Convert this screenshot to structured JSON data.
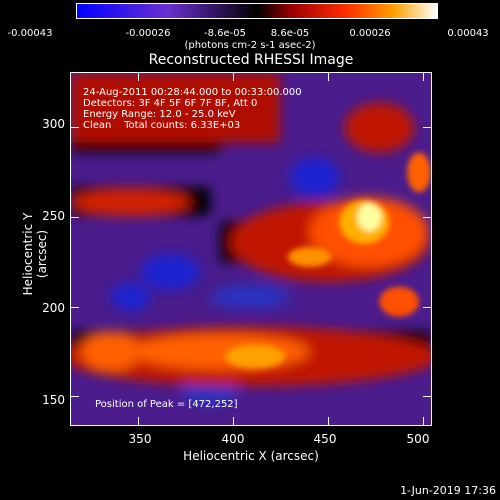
{
  "chart_data": {
    "type": "heatmap",
    "title": "Reconstructed RHESSI Image",
    "xlabel": "Heliocentric X (arcsec)",
    "ylabel": "Heliocentric Y (arcsec)",
    "xlim": [
      315,
      505
    ],
    "ylim": [
      133,
      330
    ],
    "xticks": [
      "350",
      "400",
      "450",
      "500"
    ],
    "xtick_values": [
      350,
      400,
      450,
      500
    ],
    "yticks": [
      "150",
      "200",
      "250",
      "300"
    ],
    "ytick_values": [
      150,
      200,
      250,
      300
    ],
    "colorbar": {
      "ticks": [
        "-0.00043",
        "-0.00026",
        "-8.6e-05",
        "8.6e-05",
        "0.00026",
        "0.00043"
      ],
      "units": "(photons cm-2 s-1 asec-2)",
      "colors": [
        "#0000ff",
        "#6b2fd0",
        "#000000",
        "#a00000",
        "#ff3000",
        "#ffa000",
        "#ffffff"
      ]
    },
    "annotations": {
      "time_range": "24-Aug-2011 00:28:44.000 to 00:33:00.000",
      "detectors": "Detectors: 3F 4F 5F 6F 7F 8F, Att 0",
      "energy": "Energy Range: 12.0 - 25.0 keV",
      "clean": "Clean    Total counts: 6.33E+03",
      "peak": "Position of Peak = [472,252]"
    },
    "peak": [
      472,
      252
    ]
  },
  "footer": {
    "timestamp": "1-Jun-2019 17:36"
  }
}
